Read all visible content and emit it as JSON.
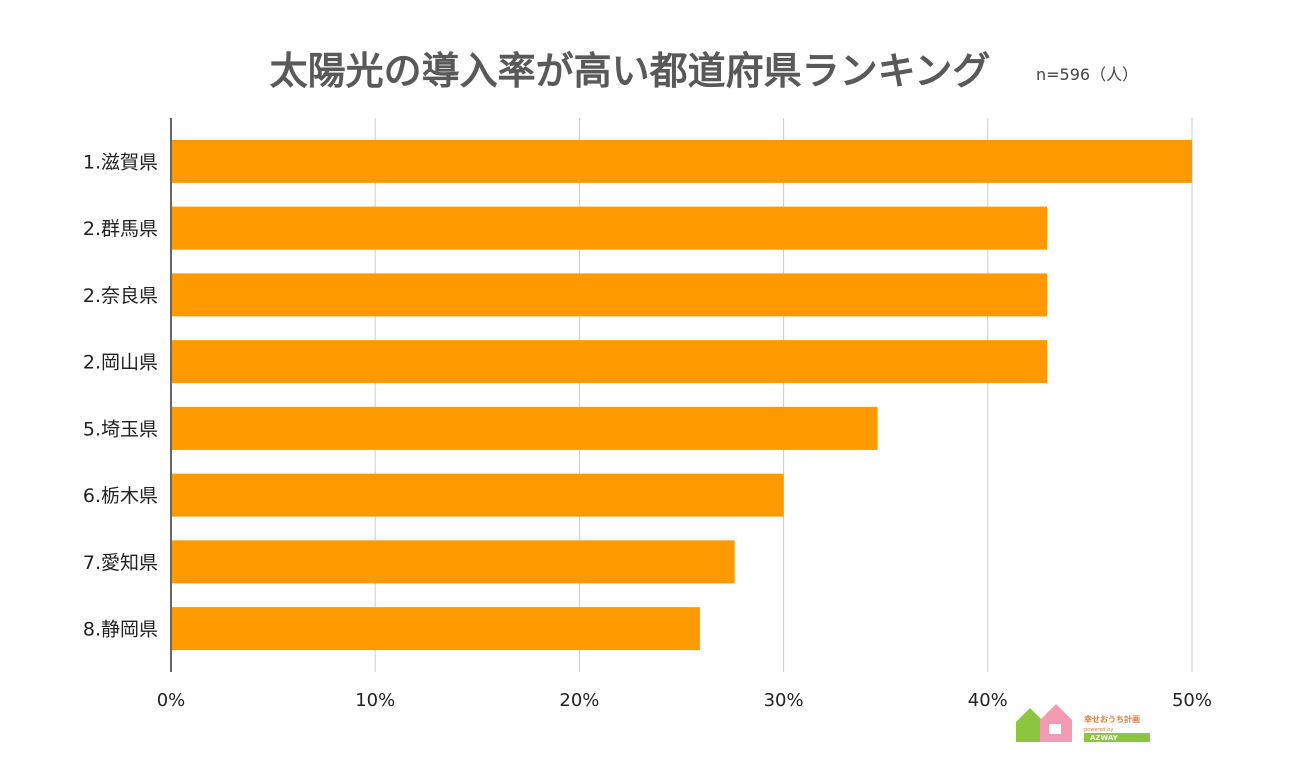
{
  "chart_data": {
    "type": "bar",
    "orientation": "horizontal",
    "title": "太陽光の導入率が高い都道府県ランキング",
    "subtitle": "n=596（人）",
    "categories": [
      "1.滋賀県",
      "2.群馬県",
      "2.奈良県",
      "2.岡山県",
      "5.埼玉県",
      "6.栃木県",
      "7.愛知県",
      "8.静岡県"
    ],
    "values": [
      50.0,
      42.9,
      42.9,
      42.9,
      34.6,
      30.0,
      27.6,
      25.9
    ],
    "xlim": [
      0,
      50
    ],
    "xticks": [
      0,
      10,
      20,
      30,
      40,
      50
    ],
    "xtick_labels": [
      "0%",
      "10%",
      "20%",
      "30%",
      "40%",
      "50%"
    ],
    "xlabel": "",
    "ylabel": "",
    "grid": "vertical",
    "bar_color": "#ff9900"
  },
  "logo": {
    "name": "幸せおうち計画",
    "powered": "powered by",
    "brand": "AZWAY"
  }
}
